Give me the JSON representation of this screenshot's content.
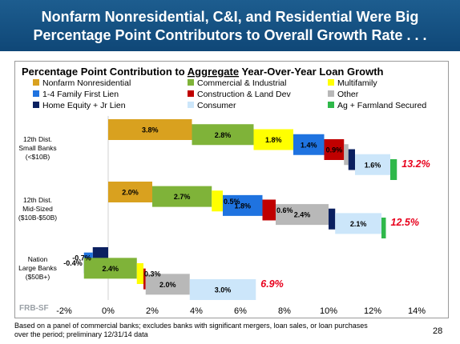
{
  "header": {
    "title_line1": "Nonfarm Nonresidential, C&I, and Residential Were Big",
    "title_line2": "Percentage Point Contributors to Overall Growth Rate . . ."
  },
  "footnote": {
    "line1": "Based on a panel of commercial banks; excludes banks with significant mergers, loan sales, or loan purchases",
    "line2": "over the period; preliminary 12/31/14 data"
  },
  "page_number": "28",
  "watermark": "FRB-SF",
  "colors": {
    "header_bg": "#0f4777",
    "total_label": "#e8001c",
    "nonfarm": "#d9a11f",
    "ci": "#7fb339",
    "multifamily": "#ffff00",
    "family14": "#1f73e0",
    "construction": "#c00000",
    "other": "#b8b8b8",
    "home_equity": "#0b2060",
    "consumer": "#cce6fa",
    "ag": "#2fb84a"
  },
  "chart_data": {
    "type": "bar",
    "subtype": "horizontal stacked waterfall",
    "title_prefix": "Percentage Point Contribution to ",
    "title_underlined": "Aggregate",
    "title_suffix": " Year-Over-Year Loan Growth",
    "xlim": [
      -2,
      14
    ],
    "x_ticks": [
      "-2%",
      "0%",
      "2%",
      "4%",
      "6%",
      "8%",
      "10%",
      "12%",
      "14%"
    ],
    "x_tick_values": [
      -2,
      0,
      2,
      4,
      6,
      8,
      10,
      12,
      14
    ],
    "legend_placement": "top",
    "legend": [
      {
        "key": "nonfarm",
        "label": "Nonfarm Nonresidential"
      },
      {
        "key": "ci",
        "label": "Commercial & Industrial"
      },
      {
        "key": "multifamily",
        "label": "Multifamily"
      },
      {
        "key": "family14",
        "label": "1-4 Family First Lien"
      },
      {
        "key": "construction",
        "label": "Construction & Land Dev"
      },
      {
        "key": "other",
        "label": "Other"
      },
      {
        "key": "home_equity",
        "label": "Home Equity + Jr Lien"
      },
      {
        "key": "consumer",
        "label": "Consumer"
      },
      {
        "key": "ag",
        "label": "Ag + Farmland Secured"
      }
    ],
    "categories": [
      {
        "label_lines": [
          "12th Dist.",
          "Small Banks",
          "(<$10B)"
        ],
        "total_label": "13.2%",
        "segments": [
          {
            "key": "nonfarm",
            "value": 3.8,
            "label": "3.8%"
          },
          {
            "key": "ci",
            "value": 2.8,
            "label": "2.8%"
          },
          {
            "key": "multifamily",
            "value": 1.8,
            "label": "1.8%"
          },
          {
            "key": "family14",
            "value": 1.4,
            "label": "1.4%"
          },
          {
            "key": "construction",
            "value": 0.9,
            "label": "0.9%"
          },
          {
            "key": "other",
            "value": 0.2,
            "label": ""
          },
          {
            "key": "home_equity",
            "value": 0.3,
            "label": ""
          },
          {
            "key": "consumer",
            "value": 1.6,
            "label": "1.6%"
          },
          {
            "key": "ag",
            "value": 0.3,
            "label": ""
          }
        ]
      },
      {
        "label_lines": [
          "12th Dist.",
          "Mid-Sized",
          "($10B-$50B)"
        ],
        "total_label": "12.5%",
        "segments": [
          {
            "key": "nonfarm",
            "value": 2.0,
            "label": "2.0%"
          },
          {
            "key": "ci",
            "value": 2.7,
            "label": "2.7%"
          },
          {
            "key": "multifamily",
            "value": 0.5,
            "label": "0.5%"
          },
          {
            "key": "family14",
            "value": 1.8,
            "label": "1.8%"
          },
          {
            "key": "construction",
            "value": 0.6,
            "label": "0.6%"
          },
          {
            "key": "other",
            "value": 2.4,
            "label": "2.4%"
          },
          {
            "key": "home_equity",
            "value": 0.3,
            "label": ""
          },
          {
            "key": "consumer",
            "value": 2.1,
            "label": "2.1%"
          },
          {
            "key": "ag",
            "value": 0.2,
            "label": ""
          }
        ]
      },
      {
        "label_lines": [
          "Nation",
          "Large Banks",
          "($50B+)"
        ],
        "total_label": "6.9%",
        "segments": [
          {
            "key": "home_equity",
            "value": -0.7,
            "label": "-0.7%"
          },
          {
            "key": "family14",
            "value": -0.4,
            "label": "-0.4%"
          },
          {
            "key": "ci",
            "value": 2.4,
            "label": "2.4%"
          },
          {
            "key": "multifamily",
            "value": 0.3,
            "label": "0.3%"
          },
          {
            "key": "construction",
            "value": 0.1,
            "label": ""
          },
          {
            "key": "other",
            "value": 2.0,
            "label": "2.0%"
          },
          {
            "key": "consumer",
            "value": 3.0,
            "label": "3.0%"
          }
        ]
      }
    ]
  }
}
